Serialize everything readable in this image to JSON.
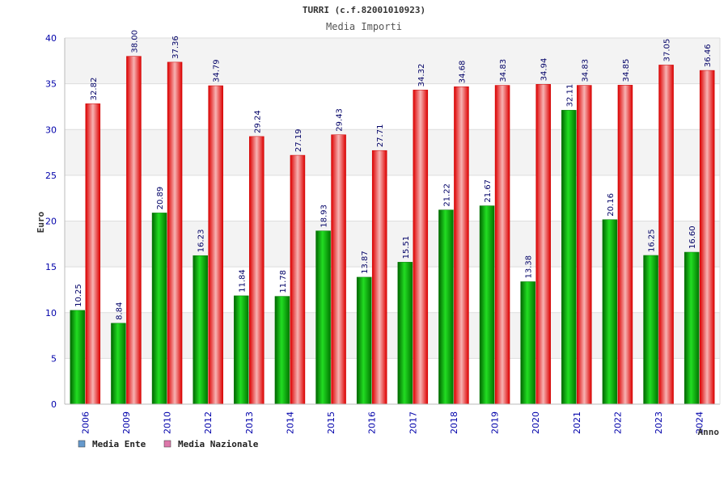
{
  "chart_data": {
    "type": "bar",
    "title": "TURRI (c.f.82001010923)",
    "subtitle": "Media Importi",
    "ylabel": "Euro",
    "xlabel": "Anno",
    "ylim": [
      0,
      40
    ],
    "yticks": [
      0,
      5,
      10,
      15,
      20,
      25,
      30,
      35,
      40
    ],
    "grid": true,
    "legend_position": "bottom-left",
    "categories": [
      "2006",
      "2009",
      "2010",
      "2012",
      "2013",
      "2014",
      "2015",
      "2016",
      "2017",
      "2018",
      "2019",
      "2020",
      "2021",
      "2022",
      "2023",
      "2024"
    ],
    "series": [
      {
        "name": "Media Ente",
        "color": "#00aa00",
        "values": [
          10.25,
          8.84,
          20.89,
          16.23,
          11.84,
          11.78,
          18.93,
          13.87,
          15.51,
          21.22,
          21.67,
          13.38,
          32.11,
          20.16,
          16.25,
          16.6
        ],
        "labels": [
          "10.25",
          "8.84",
          "20.89",
          "16.23",
          "11.84",
          "11.78",
          "18.93",
          "13.87",
          "15.51",
          "21.22",
          "21.67",
          "13.38",
          "32.11",
          "20.16",
          "16.25",
          "16.60"
        ]
      },
      {
        "name": "Media Nazionale",
        "color": "#ee0000",
        "values": [
          32.82,
          38.0,
          37.36,
          34.79,
          29.24,
          27.19,
          29.43,
          27.71,
          34.32,
          34.68,
          34.83,
          34.94,
          34.83,
          34.85,
          37.05,
          36.46
        ],
        "labels": [
          "32.82",
          "38.00",
          "37.36",
          "34.79",
          "29.24",
          "27.19",
          "29.43",
          "27.71",
          "34.32",
          "34.68",
          "34.83",
          "34.94",
          "34.83",
          "34.85",
          "37.05",
          "36.46"
        ]
      }
    ],
    "legend_swatch_colors": [
      "#6699cc",
      "#dd77aa"
    ]
  }
}
